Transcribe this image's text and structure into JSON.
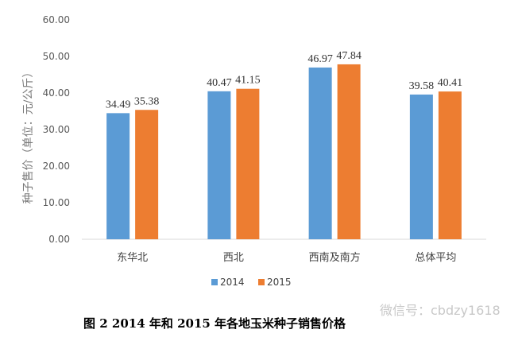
{
  "chart_data": {
    "type": "bar",
    "categories": [
      "东华北",
      "西北",
      "西南及南方",
      "总体平均"
    ],
    "series": [
      {
        "name": "2014",
        "values": [
          34.49,
          40.47,
          46.97,
          39.58
        ],
        "color": "#5B9BD5"
      },
      {
        "name": "2015",
        "values": [
          35.38,
          41.15,
          47.84,
          40.41
        ],
        "color": "#ED7D31"
      }
    ],
    "data_labels": [
      [
        "34.49",
        "40.47",
        "46.97",
        "39.58"
      ],
      [
        "35.38",
        "41.15",
        "47.84",
        "40.41"
      ]
    ],
    "ylabel": "种子售价（单位：元/公斤）",
    "ylim": [
      0,
      60
    ],
    "yticks": [
      "0.00",
      "10.00",
      "20.00",
      "30.00",
      "40.00",
      "50.00",
      "60.00"
    ],
    "grid": false,
    "legend_position": "bottom-left"
  },
  "caption": "图 2    2014 年和 2015 年各地玉米种子销售价格",
  "watermark": "微信号：cbdzy1618"
}
